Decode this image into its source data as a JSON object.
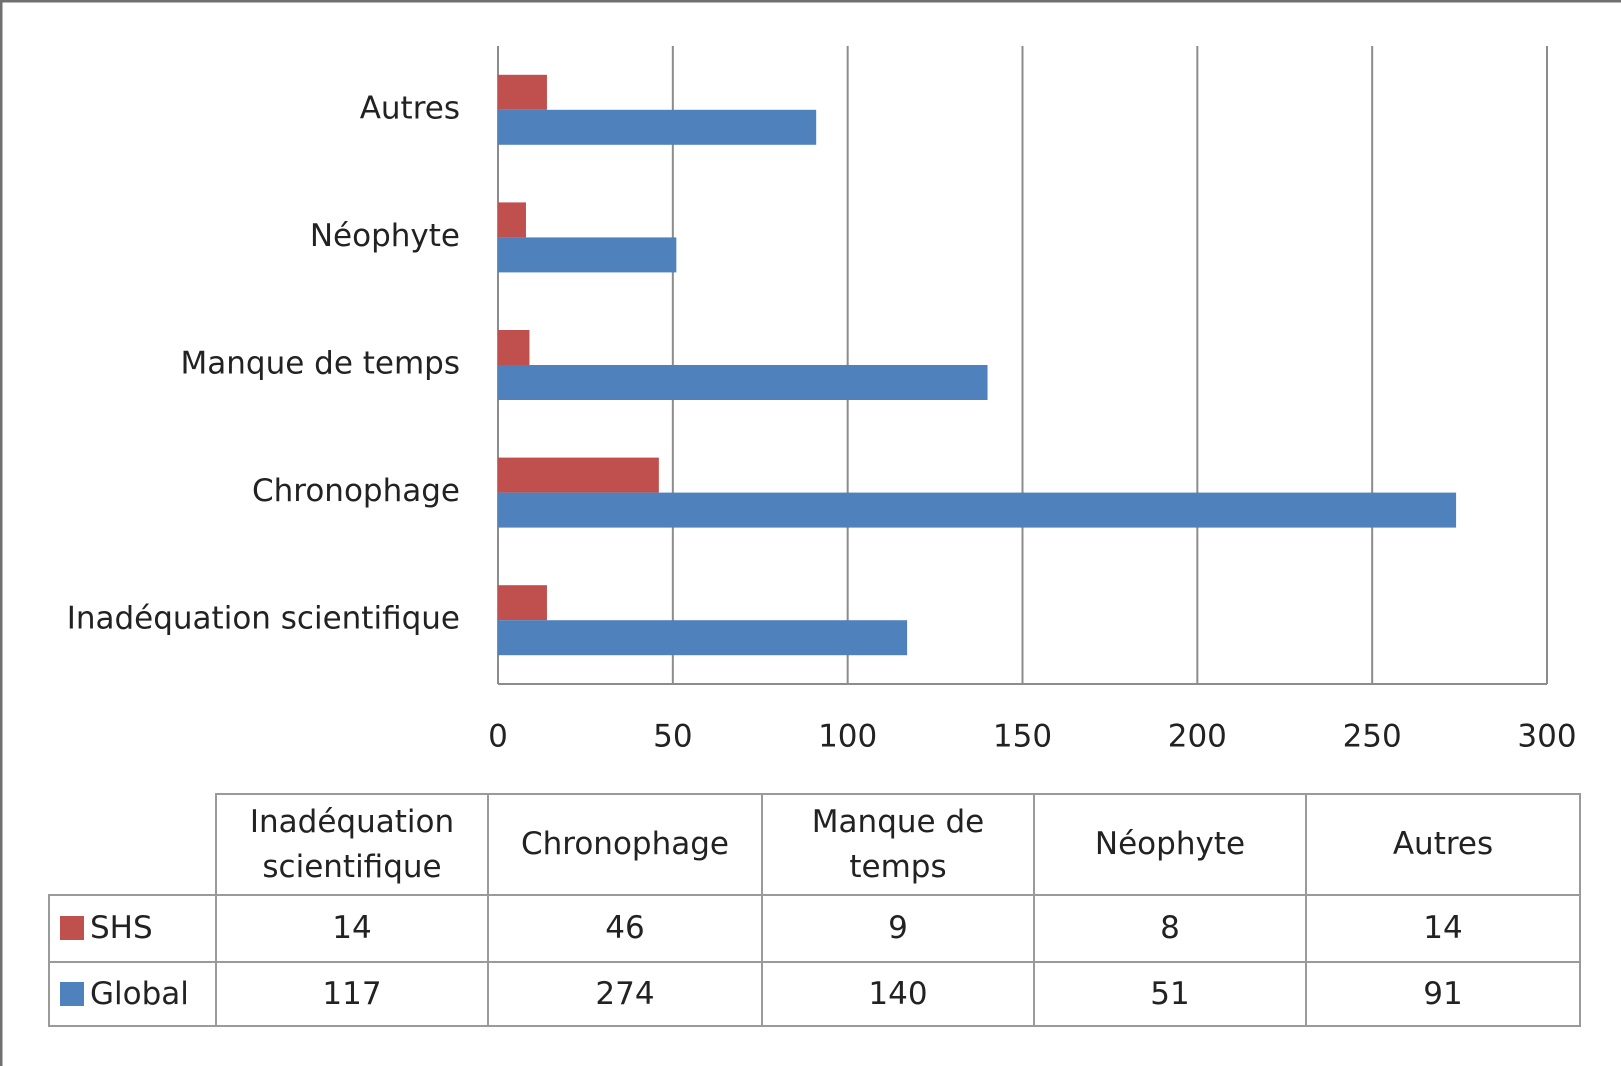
{
  "chart_data": {
    "type": "barh",
    "categories": [
      "Inadéquation scientifique",
      "Chronophage",
      "Manque de temps",
      "Néophyte",
      "Autres"
    ],
    "series": [
      {
        "name": "SHS",
        "color": "#c0504d",
        "values": [
          14,
          46,
          9,
          8,
          14
        ]
      },
      {
        "name": "Global",
        "color": "#4f81bd",
        "values": [
          117,
          274,
          140,
          51,
          91
        ]
      }
    ],
    "xlim": [
      0,
      300
    ],
    "xticks": [
      0,
      50,
      100,
      150,
      200,
      250,
      300
    ],
    "grid": true,
    "data_table": true
  }
}
